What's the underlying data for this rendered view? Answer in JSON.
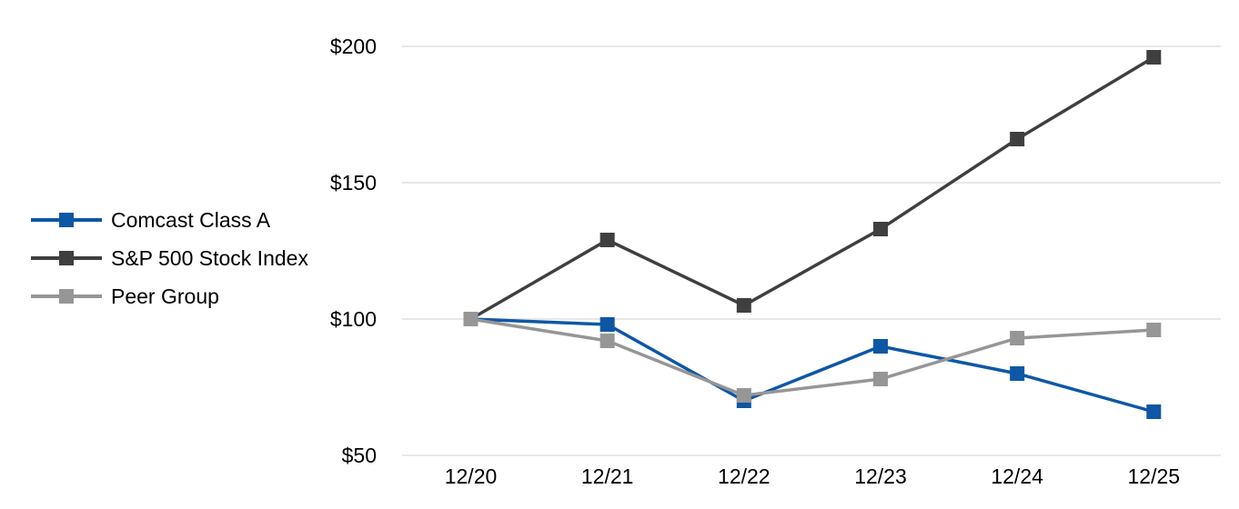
{
  "chart_data": {
    "type": "line",
    "title": "",
    "xlabel": "",
    "ylabel": "",
    "x": [
      "12/20",
      "12/21",
      "12/22",
      "12/23",
      "12/24",
      "12/25"
    ],
    "series": [
      {
        "name": "Comcast Class A",
        "color": "#0e57a5",
        "marker": "square",
        "values": [
          100,
          98,
          70,
          90,
          80,
          66
        ]
      },
      {
        "name": "S&P 500 Stock Index",
        "color": "#3f3f3f",
        "marker": "square",
        "values": [
          100,
          129,
          105,
          133,
          166,
          196
        ]
      },
      {
        "name": "Peer Group",
        "color": "#969696",
        "marker": "square",
        "values": [
          100,
          92,
          72,
          78,
          93,
          96
        ]
      }
    ],
    "y_ticks": [
      {
        "label": "$200",
        "value": 200
      },
      {
        "label": "$150",
        "value": 150
      },
      {
        "label": "$100",
        "value": 100
      },
      {
        "label": "$50",
        "value": 50
      }
    ],
    "ylim": [
      50,
      210
    ],
    "grid": "horizontal",
    "legend_position": "left",
    "value_unit": "$"
  },
  "colors": {
    "background": "#ffffff",
    "gridline": "#e8e8e8",
    "text": "#000000"
  }
}
